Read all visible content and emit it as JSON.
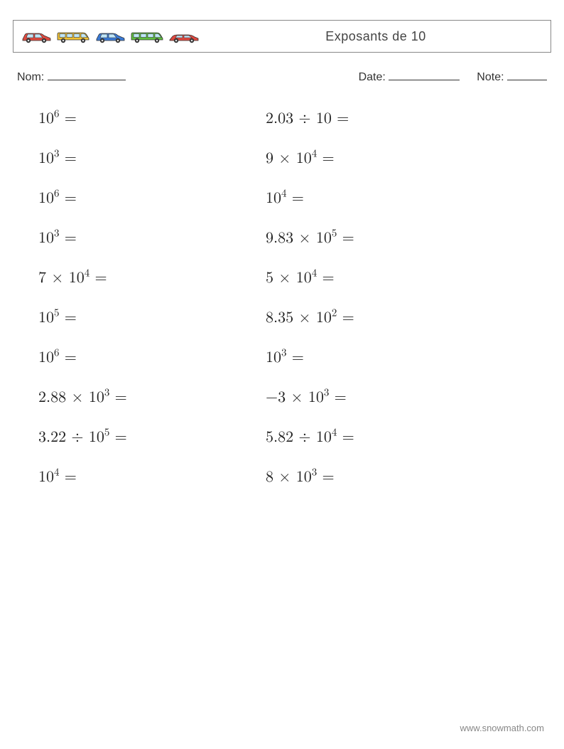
{
  "header": {
    "title": "Exposants de 10"
  },
  "info": {
    "name_label": "Nom:",
    "date_label": "Date:",
    "note_label": "Note:"
  },
  "problems": {
    "left": [
      {
        "base": "10",
        "exp": "6",
        "prefix": "",
        "op": ""
      },
      {
        "base": "10",
        "exp": "3",
        "prefix": "",
        "op": ""
      },
      {
        "base": "10",
        "exp": "6",
        "prefix": "",
        "op": ""
      },
      {
        "base": "10",
        "exp": "3",
        "prefix": "",
        "op": ""
      },
      {
        "base": "10",
        "exp": "4",
        "prefix": "7",
        "op": "×"
      },
      {
        "base": "10",
        "exp": "5",
        "prefix": "",
        "op": ""
      },
      {
        "base": "10",
        "exp": "6",
        "prefix": "",
        "op": ""
      },
      {
        "base": "10",
        "exp": "3",
        "prefix": "2.88",
        "op": "×"
      },
      {
        "base": "10",
        "exp": "5",
        "prefix": "3.22",
        "op": "÷"
      },
      {
        "base": "10",
        "exp": "4",
        "prefix": "",
        "op": ""
      }
    ],
    "right": [
      {
        "base": "10",
        "exp": "",
        "prefix": "2.03",
        "op": "÷"
      },
      {
        "base": "10",
        "exp": "4",
        "prefix": "9",
        "op": "×"
      },
      {
        "base": "10",
        "exp": "4",
        "prefix": "",
        "op": ""
      },
      {
        "base": "10",
        "exp": "5",
        "prefix": "9.83",
        "op": "×"
      },
      {
        "base": "10",
        "exp": "4",
        "prefix": "5",
        "op": "×"
      },
      {
        "base": "10",
        "exp": "2",
        "prefix": "8.35",
        "op": "×"
      },
      {
        "base": "10",
        "exp": "3",
        "prefix": "",
        "op": ""
      },
      {
        "base": "10",
        "exp": "3",
        "prefix": "−3",
        "op": "×"
      },
      {
        "base": "10",
        "exp": "4",
        "prefix": "5.82",
        "op": "÷"
      },
      {
        "base": "10",
        "exp": "3",
        "prefix": "8",
        "op": "×"
      }
    ]
  },
  "footer": {
    "url": "www.snowmath.com"
  },
  "colors": {
    "car1_body": "#e04a3f",
    "car1_windows": "#bfe5f7",
    "car2_body": "#f2c335",
    "car2_windows": "#bfe5f7",
    "car3_body": "#3a7ad6",
    "car3_windows": "#bfe5f7",
    "car4_body": "#5fbf3f",
    "car4_windows": "#bfe5f7",
    "car5_body": "#e0483f",
    "car5_windows": "#bfe5f7",
    "wheel": "#333333",
    "wheel_hub": "#dddddd",
    "border": "#888888",
    "text": "#333333"
  }
}
